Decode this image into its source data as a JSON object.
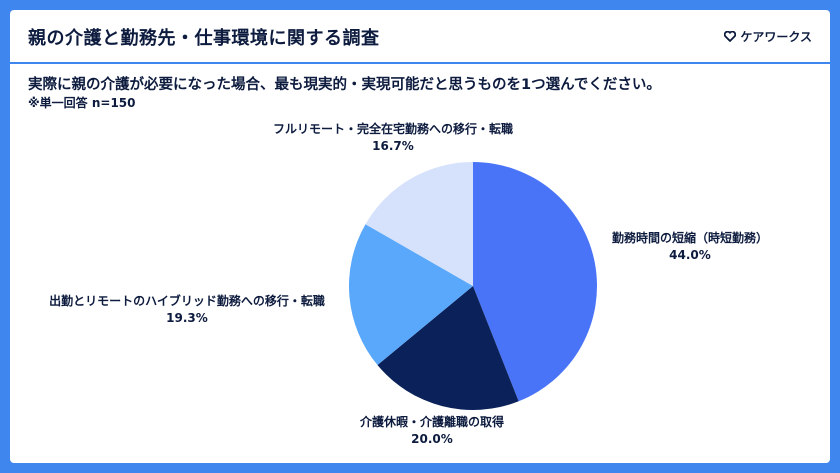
{
  "header": {
    "title": "親の介護と勤務先・仕事環境に関する調査",
    "brand": "ケアワークス"
  },
  "question": "実際に親の介護が必要になった場合、最も現実的・実現可能だと思うものを1つ選んでください。",
  "note": "※単一回答 n=150",
  "colors": {
    "background": "#3f86ee",
    "text": "#0d1b3e"
  },
  "chart_data": {
    "type": "pie",
    "title": "",
    "start_angle": "12 o'clock, clockwise",
    "slices": [
      {
        "label": "勤務時間の短縮（時短勤務）",
        "value_label": "44.0%",
        "value": 44.0,
        "color": "#4a74f8"
      },
      {
        "label": "介護休暇・介護離職の取得",
        "value_label": "20.0%",
        "value": 20.0,
        "color": "#0b2159"
      },
      {
        "label": "出勤とリモートのハイブリッド勤務への移行・転職",
        "value_label": "19.3%",
        "value": 19.3,
        "color": "#59a8fb"
      },
      {
        "label": "フルリモート・完全在宅勤務への移行・転職",
        "value_label": "16.7%",
        "value": 16.7,
        "color": "#d6e1fb"
      }
    ]
  }
}
